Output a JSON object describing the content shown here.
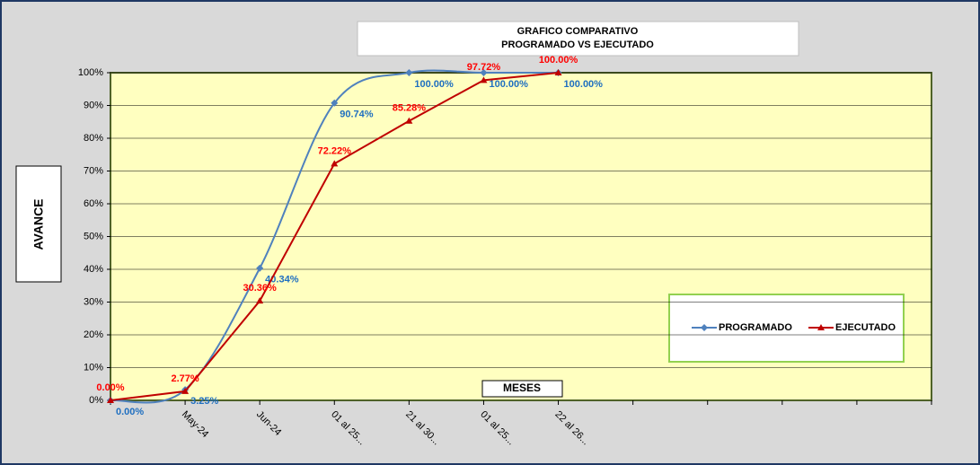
{
  "chart_data": {
    "type": "line",
    "title": "GRAFICO COMPARATIVO",
    "subtitle": "PROGRAMADO VS EJECUTADO",
    "y_label": "AVANCE",
    "x_label": "MESES",
    "categories": [
      null,
      "May-24",
      "Jun-24",
      "01 al 25...",
      "21 al 30...",
      "01 al 25...",
      "22 al 26...",
      null,
      null,
      null,
      null,
      null
    ],
    "series": [
      {
        "name": "PROGRAMADO",
        "color": "#4f81bd",
        "label_color": "#1f6fc0",
        "smooth": true,
        "marker": "diamond",
        "values": [
          0,
          3.25,
          40.34,
          90.74,
          100,
          100,
          100,
          null,
          null,
          null,
          null,
          null
        ],
        "value_labels": [
          "0.00%",
          "3.25%",
          "40.34%",
          "90.74%",
          "100.00%",
          "100.00%",
          "100.00%",
          null,
          null,
          null,
          null,
          null
        ]
      },
      {
        "name": "EJECUTADO",
        "color": "#c00000",
        "label_color": "#ff0000",
        "smooth": false,
        "marker": "triangle",
        "values": [
          0,
          2.77,
          30.36,
          72.22,
          85.28,
          97.72,
          100,
          null,
          null,
          null,
          null,
          null
        ],
        "value_labels": [
          "0.00%",
          "2.77%",
          "30.36%",
          "72.22%",
          "85.28%",
          "97.72%",
          "100.00%",
          null,
          null,
          null,
          null,
          null
        ]
      }
    ],
    "ylim": [
      0,
      100
    ],
    "yticks": [
      {
        "value": 0,
        "label": "0%"
      },
      {
        "value": 10,
        "label": "10%"
      },
      {
        "value": 20,
        "label": "20%"
      },
      {
        "value": 30,
        "label": "30%"
      },
      {
        "value": 40,
        "label": "40%"
      },
      {
        "value": 50,
        "label": "50%"
      },
      {
        "value": 60,
        "label": "60%"
      },
      {
        "value": 70,
        "label": "70%"
      },
      {
        "value": 80,
        "label": "80%"
      },
      {
        "value": 90,
        "label": "90%"
      },
      {
        "value": 100,
        "label": "100%"
      }
    ],
    "grid": true
  }
}
